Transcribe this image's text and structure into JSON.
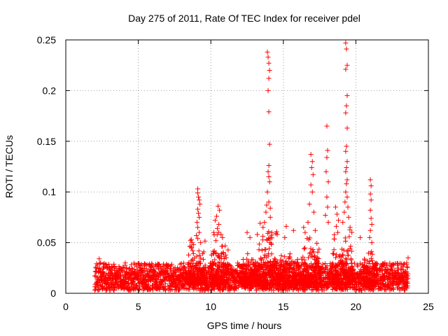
{
  "chart_data": {
    "type": "scatter",
    "title": "Day 275 of 2011, Rate Of TEC Index for receiver pdel",
    "xlabel": "GPS time / hours",
    "ylabel": "ROTI / TECUs",
    "xlim": [
      0,
      25
    ],
    "ylim": [
      0,
      0.25
    ],
    "xticks": [
      0,
      5,
      10,
      15,
      20,
      25
    ],
    "yticks": [
      0,
      0.05,
      0.1,
      0.15,
      0.2,
      0.25
    ],
    "xtick_labels": [
      "0",
      "5",
      "10",
      "15",
      "20",
      "25"
    ],
    "ytick_labels": [
      "0",
      "0.05",
      "0.1",
      "0.15",
      "0.2",
      "0.25"
    ],
    "grid": true,
    "marker": "plus",
    "series_color": "#ff0000",
    "series": [
      {
        "x": [
          9.1,
          9.1,
          9.15,
          9.2,
          9.25,
          9.1,
          9.15,
          9.2,
          9.05,
          9.1,
          9.2,
          9.0,
          9.1,
          9.3,
          8.6,
          8.7,
          8.8,
          8.65,
          8.75,
          10.5,
          10.6,
          10.4,
          10.3,
          10.55,
          10.45,
          10.2,
          10.7,
          10.8,
          10.35,
          13.9,
          13.95,
          14.0,
          14.05,
          14.0,
          13.95,
          14.0,
          14.05,
          14.0,
          13.95,
          14.0,
          14.05,
          13.9,
          14.0,
          13.85,
          14.1,
          13.8,
          14.1,
          13.7,
          13.6,
          14.2,
          15.2,
          15.1,
          16.9,
          17.0,
          16.95,
          17.05,
          16.9,
          17.0,
          16.8,
          17.1,
          16.7,
          17.2,
          18.0,
          18.05,
          18.0,
          17.95,
          18.1,
          18.0,
          18.05,
          17.9,
          18.1,
          19.3,
          19.35,
          19.4,
          19.3,
          19.4,
          19.35,
          19.3,
          19.4,
          19.35,
          19.3,
          19.4,
          19.35,
          19.3,
          19.4,
          19.35,
          19.3,
          19.4,
          19.25,
          19.45,
          19.2,
          19.5,
          19.1,
          19.6,
          18.6,
          18.7,
          18.8,
          18.65,
          18.75,
          21.0,
          21.05,
          21.0,
          21.05,
          21.0,
          21.05,
          21.1,
          21.0,
          20.95,
          21.1,
          12.5,
          12.7,
          13.2,
          15.7,
          16.4,
          16.5,
          20.3,
          22.0,
          22.5,
          23.6,
          23.5,
          2.2,
          2.3,
          2.4
        ],
        "y": [
          0.103,
          0.099,
          0.095,
          0.092,
          0.088,
          0.083,
          0.079,
          0.075,
          0.07,
          0.065,
          0.06,
          0.057,
          0.054,
          0.05,
          0.052,
          0.05,
          0.048,
          0.045,
          0.042,
          0.086,
          0.082,
          0.076,
          0.072,
          0.068,
          0.064,
          0.06,
          0.058,
          0.055,
          0.052,
          0.238,
          0.233,
          0.227,
          0.22,
          0.212,
          0.2,
          0.179,
          0.147,
          0.126,
          0.12,
          0.115,
          0.11,
          0.1,
          0.09,
          0.087,
          0.084,
          0.08,
          0.075,
          0.07,
          0.065,
          0.06,
          0.066,
          0.055,
          0.137,
          0.13,
          0.124,
          0.117,
          0.107,
          0.1,
          0.088,
          0.08,
          0.07,
          0.062,
          0.165,
          0.141,
          0.134,
          0.12,
          0.11,
          0.095,
          0.085,
          0.077,
          0.07,
          0.247,
          0.241,
          0.225,
          0.221,
          0.195,
          0.185,
          0.178,
          0.163,
          0.145,
          0.14,
          0.13,
          0.124,
          0.12,
          0.112,
          0.108,
          0.1,
          0.095,
          0.09,
          0.085,
          0.08,
          0.075,
          0.07,
          0.065,
          0.085,
          0.078,
          0.072,
          0.066,
          0.06,
          0.112,
          0.106,
          0.098,
          0.092,
          0.082,
          0.074,
          0.068,
          0.062,
          0.055,
          0.05,
          0.06,
          0.055,
          0.058,
          0.062,
          0.065,
          0.06,
          0.055,
          0.03,
          0.028,
          0.035,
          0.03,
          0.028,
          0.034,
          0.03
        ]
      }
    ],
    "baseline_band": {
      "x_start": 2.0,
      "x_end": 23.6,
      "y_typical_min": 0.003,
      "y_typical_max": 0.03
    }
  }
}
